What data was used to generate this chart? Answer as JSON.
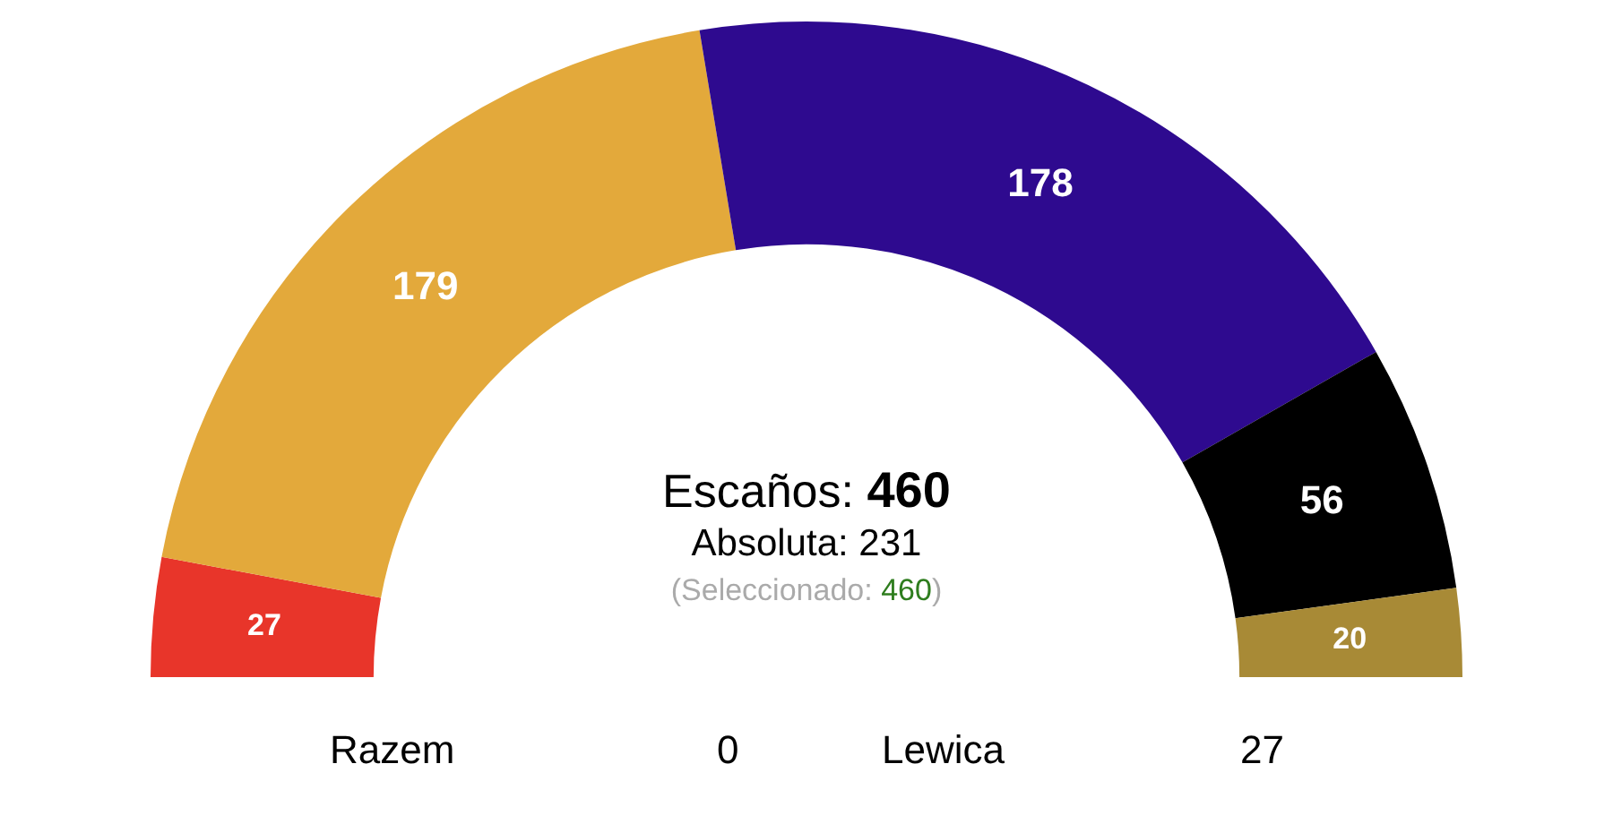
{
  "chart_data": {
    "type": "donut",
    "categories": [
      null,
      null,
      null,
      null,
      null
    ],
    "values": [
      27,
      179,
      178,
      56,
      20
    ],
    "colors": [
      "#e8352a",
      "#e3a93b",
      "#2e0a8f",
      "#000000",
      "#a88a36"
    ],
    "data_labels": true,
    "annotations": [
      "Escaños: 460",
      "Absoluta: 231",
      "(Seleccionado: 460)",
      "Razem",
      "0",
      "Lewica",
      "27"
    ]
  }
}
